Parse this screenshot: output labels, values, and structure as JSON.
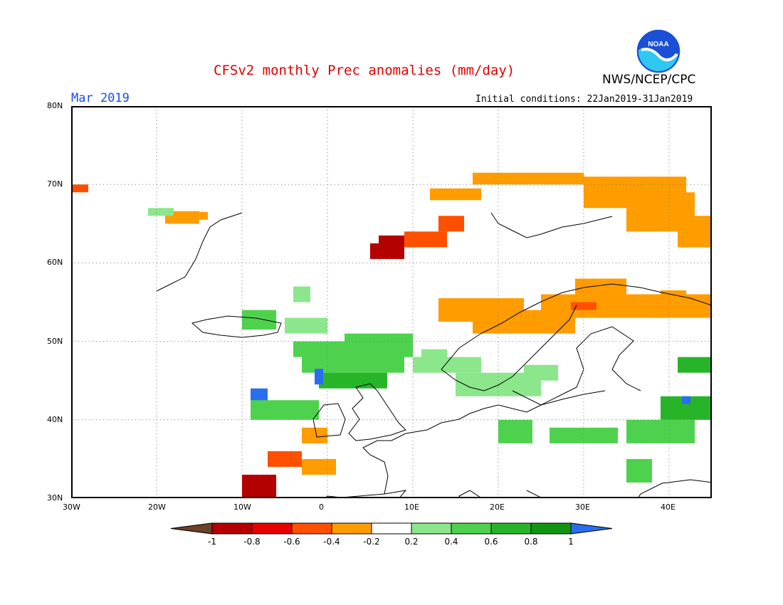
{
  "header": {
    "title": "CFSv2 monthly Prec anomalies (mm/day)",
    "month": "Mar 2019",
    "initial_conditions": "Initial conditions: 22Jan2019-31Jan2019",
    "agency": "NWS/NCEP/CPC",
    "logo_text": "NOAA"
  },
  "map": {
    "projection": "lat-lon",
    "lon_range": [
      -30,
      45
    ],
    "lat_range": [
      30,
      80
    ],
    "gridlines": "dotted every 10 degrees",
    "lon_tick_labels": [
      "30W",
      "20W",
      "10W",
      "0",
      "10E",
      "20E",
      "30E",
      "40E"
    ],
    "lat_tick_labels": [
      "30N",
      "40N",
      "50N",
      "60N",
      "70N",
      "80N"
    ]
  },
  "legend": {
    "labels": [
      "-1",
      "-0.8",
      "-0.6",
      "-0.4",
      "-0.2",
      "0.2",
      "0.4",
      "0.6",
      "0.8",
      "1"
    ],
    "colors": [
      "#6b4226",
      "#b40000",
      "#e60000",
      "#ff5000",
      "#ff9c00",
      "#ffffff",
      "#8ce68c",
      "#4ed24e",
      "#28b428",
      "#129612",
      "#2a6ef0"
    ]
  },
  "anomaly_regions": [
    {
      "name": "Iceland SW",
      "value": -0.6,
      "color": "#ff5000"
    },
    {
      "name": "Iceland NW",
      "value": -0.4,
      "color": "#ff9c00"
    },
    {
      "name": "Iceland E",
      "value": 0.3,
      "color": "#8ce68c"
    },
    {
      "name": "Greenland E coast",
      "value": -0.4,
      "color": "#ff9c00"
    },
    {
      "name": "Norway W coast",
      "value": -0.8,
      "color": "#b40000"
    },
    {
      "name": "Norway coast",
      "value": -0.6,
      "color": "#ff5000"
    },
    {
      "name": "Scandinavia N",
      "value": -0.4,
      "color": "#ff9c00"
    },
    {
      "name": "Kola / NW Russia",
      "value": -0.4,
      "color": "#ff9c00"
    },
    {
      "name": "Russia NE",
      "value": -0.4,
      "color": "#ff9c00"
    },
    {
      "name": "Poland / Belarus",
      "value": -0.4,
      "color": "#ff9c00"
    },
    {
      "name": "Belarus core",
      "value": -0.6,
      "color": "#ff5000"
    },
    {
      "name": "Russia E",
      "value": -0.4,
      "color": "#ff9c00"
    },
    {
      "name": "Ireland",
      "value": 0.6,
      "color": "#4ed24e"
    },
    {
      "name": "Britain",
      "value": 0.3,
      "color": "#8ce68c"
    },
    {
      "name": "France / Benelux",
      "value": 0.6,
      "color": "#4ed24e"
    },
    {
      "name": "France SW",
      "value": 0.8,
      "color": "#28b428"
    },
    {
      "name": "Bay of Biscay",
      "value": 1.0,
      "color": "#2a6ef0"
    },
    {
      "name": "Iberia NW",
      "value": 1.0,
      "color": "#2a6ef0"
    },
    {
      "name": "Iberia N",
      "value": 0.6,
      "color": "#4ed24e"
    },
    {
      "name": "Iberia SE",
      "value": -0.4,
      "color": "#ff9c00"
    },
    {
      "name": "Morocco N",
      "value": -0.6,
      "color": "#ff5000"
    },
    {
      "name": "Morocco W",
      "value": -0.8,
      "color": "#b40000"
    },
    {
      "name": "Algeria",
      "value": -0.4,
      "color": "#ff9c00"
    },
    {
      "name": "Balkans",
      "value": 0.3,
      "color": "#8ce68c"
    },
    {
      "name": "Greece",
      "value": 0.6,
      "color": "#4ed24e"
    },
    {
      "name": "Turkey",
      "value": 0.6,
      "color": "#4ed24e"
    },
    {
      "name": "Caucasus",
      "value": 0.8,
      "color": "#28b428"
    },
    {
      "name": "Caucasus core",
      "value": 1.0,
      "color": "#2a6ef0"
    },
    {
      "name": "Levant",
      "value": 0.6,
      "color": "#4ed24e"
    },
    {
      "name": "Central Europe",
      "value": 0.3,
      "color": "#8ce68c"
    }
  ]
}
